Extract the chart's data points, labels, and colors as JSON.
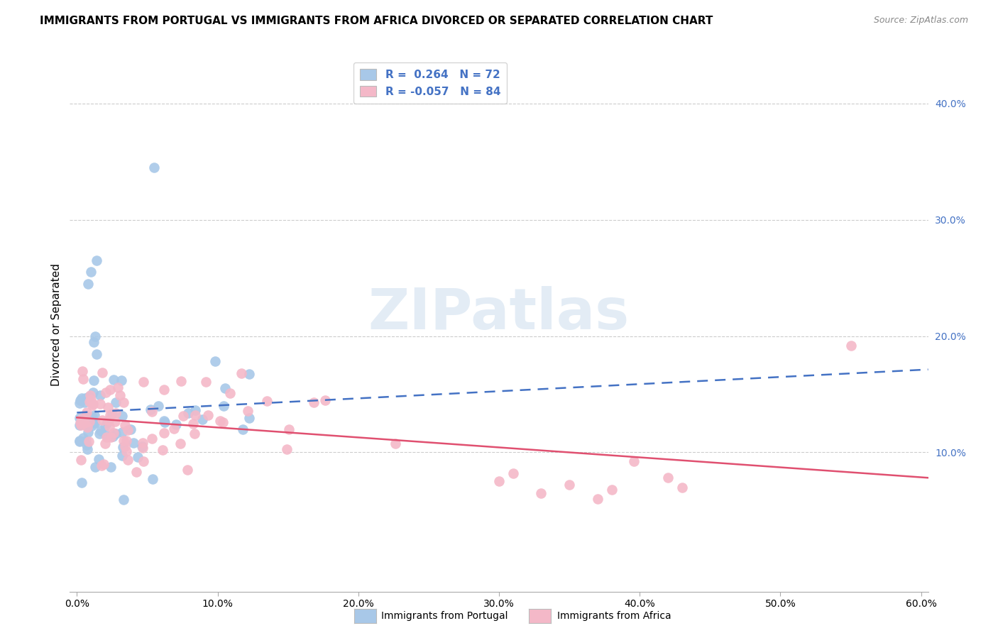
{
  "title": "IMMIGRANTS FROM PORTUGAL VS IMMIGRANTS FROM AFRICA DIVORCED OR SEPARATED CORRELATION CHART",
  "source": "Source: ZipAtlas.com",
  "xlabel_legend1": "Immigrants from Portugal",
  "xlabel_legend2": "Immigrants from Africa",
  "ylabel": "Divorced or Separated",
  "xlim": [
    -0.005,
    0.605
  ],
  "ylim": [
    -0.02,
    0.44
  ],
  "x_ticks": [
    0.0,
    0.1,
    0.2,
    0.3,
    0.4,
    0.5,
    0.6
  ],
  "y_ticks_right": [
    0.1,
    0.2,
    0.3,
    0.4
  ],
  "r1": 0.264,
  "n1": 72,
  "r2": -0.057,
  "n2": 84,
  "color1": "#A8C8E8",
  "color2": "#F4B8C8",
  "line_color1": "#4472C4",
  "line_color2": "#E05070",
  "watermark": "ZIPatlas",
  "title_fontsize": 11,
  "source_fontsize": 9,
  "seed1": 42,
  "seed2": 77
}
